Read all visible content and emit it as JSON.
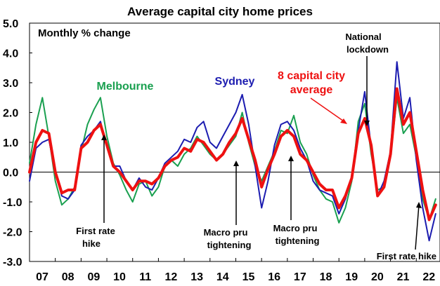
{
  "chart_data": {
    "type": "line",
    "title": "Average capital city home prices",
    "subtitle": "Monthly % change",
    "ylim": [
      -3.0,
      5.0
    ],
    "yticks": [
      "5.0",
      "4.0",
      "3.0",
      "2.0",
      "1.0",
      "0.0",
      "-1.0",
      "-2.0",
      "-3.0"
    ],
    "yticks_values": [
      5,
      4,
      3,
      2,
      1,
      0,
      -1,
      -2,
      -3
    ],
    "xlim": [
      2007.0,
      2022.92
    ],
    "xticks": [
      "07",
      "08",
      "09",
      "10",
      "11",
      "12",
      "13",
      "14",
      "15",
      "16",
      "17",
      "18",
      "19",
      "20",
      "21",
      "22"
    ],
    "xticks_values": [
      2007,
      2008,
      2009,
      2010,
      2011,
      2012,
      2013,
      2014,
      2015,
      2016,
      2017,
      2018,
      2019,
      2020,
      2021,
      2022
    ],
    "grid": false,
    "series": [
      {
        "name": "Melbourne",
        "color": "#1aa050",
        "points": [
          [
            2007.0,
            0.3
          ],
          [
            2007.25,
            1.6
          ],
          [
            2007.5,
            2.5
          ],
          [
            2007.75,
            1.2
          ],
          [
            2008.0,
            -0.3
          ],
          [
            2008.25,
            -1.1
          ],
          [
            2008.5,
            -0.9
          ],
          [
            2008.75,
            -0.5
          ],
          [
            2009.0,
            0.7
          ],
          [
            2009.25,
            1.6
          ],
          [
            2009.5,
            2.1
          ],
          [
            2009.75,
            2.5
          ],
          [
            2010.0,
            1.2
          ],
          [
            2010.25,
            0.3
          ],
          [
            2010.5,
            -0.1
          ],
          [
            2010.75,
            -0.6
          ],
          [
            2011.0,
            -1.0
          ],
          [
            2011.25,
            -0.4
          ],
          [
            2011.5,
            -0.3
          ],
          [
            2011.75,
            -0.8
          ],
          [
            2012.0,
            -0.5
          ],
          [
            2012.25,
            0.2
          ],
          [
            2012.5,
            0.4
          ],
          [
            2012.75,
            0.2
          ],
          [
            2013.0,
            0.6
          ],
          [
            2013.25,
            0.8
          ],
          [
            2013.5,
            1.2
          ],
          [
            2013.75,
            0.9
          ],
          [
            2014.0,
            0.6
          ],
          [
            2014.25,
            0.4
          ],
          [
            2014.5,
            0.6
          ],
          [
            2014.75,
            0.9
          ],
          [
            2015.0,
            1.2
          ],
          [
            2015.25,
            2.0
          ],
          [
            2015.5,
            1.0
          ],
          [
            2015.75,
            0.2
          ],
          [
            2016.0,
            -0.3
          ],
          [
            2016.25,
            0.2
          ],
          [
            2016.5,
            0.7
          ],
          [
            2016.75,
            1.4
          ],
          [
            2017.0,
            1.3
          ],
          [
            2017.25,
            1.9
          ],
          [
            2017.5,
            1.0
          ],
          [
            2017.75,
            0.6
          ],
          [
            2018.0,
            -0.1
          ],
          [
            2018.25,
            -0.6
          ],
          [
            2018.5,
            -0.9
          ],
          [
            2018.75,
            -1.0
          ],
          [
            2019.0,
            -1.7
          ],
          [
            2019.25,
            -1.2
          ],
          [
            2019.5,
            -0.3
          ],
          [
            2019.75,
            1.7
          ],
          [
            2020.0,
            2.3
          ],
          [
            2020.25,
            0.6
          ],
          [
            2020.5,
            -0.6
          ],
          [
            2020.75,
            -0.5
          ],
          [
            2021.0,
            0.5
          ],
          [
            2021.25,
            2.5
          ],
          [
            2021.5,
            1.3
          ],
          [
            2021.75,
            1.6
          ],
          [
            2022.0,
            0.5
          ],
          [
            2022.25,
            -0.9
          ],
          [
            2022.5,
            -1.6
          ],
          [
            2022.75,
            -0.9
          ]
        ]
      },
      {
        "name": "Sydney",
        "color": "#1c1cb0",
        "points": [
          [
            2007.0,
            -0.3
          ],
          [
            2007.25,
            0.8
          ],
          [
            2007.5,
            1.0
          ],
          [
            2007.75,
            1.1
          ],
          [
            2008.0,
            0.0
          ],
          [
            2008.25,
            -0.8
          ],
          [
            2008.5,
            -0.9
          ],
          [
            2008.75,
            -0.6
          ],
          [
            2009.0,
            0.9
          ],
          [
            2009.25,
            1.2
          ],
          [
            2009.5,
            1.4
          ],
          [
            2009.75,
            1.7
          ],
          [
            2010.0,
            0.9
          ],
          [
            2010.25,
            0.2
          ],
          [
            2010.5,
            0.2
          ],
          [
            2010.75,
            -0.3
          ],
          [
            2011.0,
            -0.6
          ],
          [
            2011.25,
            -0.2
          ],
          [
            2011.5,
            -0.5
          ],
          [
            2011.75,
            -0.6
          ],
          [
            2012.0,
            -0.2
          ],
          [
            2012.25,
            0.3
          ],
          [
            2012.5,
            0.5
          ],
          [
            2012.75,
            0.7
          ],
          [
            2013.0,
            1.1
          ],
          [
            2013.25,
            1.0
          ],
          [
            2013.5,
            1.5
          ],
          [
            2013.75,
            1.7
          ],
          [
            2014.0,
            1.0
          ],
          [
            2014.25,
            0.8
          ],
          [
            2014.5,
            1.2
          ],
          [
            2014.75,
            1.6
          ],
          [
            2015.0,
            2.0
          ],
          [
            2015.25,
            2.6
          ],
          [
            2015.5,
            1.6
          ],
          [
            2015.75,
            0.2
          ],
          [
            2016.0,
            -1.2
          ],
          [
            2016.25,
            -0.3
          ],
          [
            2016.5,
            0.9
          ],
          [
            2016.75,
            1.6
          ],
          [
            2017.0,
            1.7
          ],
          [
            2017.25,
            1.4
          ],
          [
            2017.5,
            0.8
          ],
          [
            2017.75,
            0.4
          ],
          [
            2018.0,
            -0.3
          ],
          [
            2018.25,
            -0.6
          ],
          [
            2018.5,
            -0.7
          ],
          [
            2018.75,
            -0.8
          ],
          [
            2019.0,
            -1.4
          ],
          [
            2019.25,
            -0.9
          ],
          [
            2019.5,
            -0.2
          ],
          [
            2019.75,
            1.4
          ],
          [
            2020.0,
            2.7
          ],
          [
            2020.25,
            0.8
          ],
          [
            2020.5,
            -0.8
          ],
          [
            2020.75,
            -0.3
          ],
          [
            2021.0,
            0.7
          ],
          [
            2021.25,
            3.7
          ],
          [
            2021.5,
            1.8
          ],
          [
            2021.75,
            2.5
          ],
          [
            2022.0,
            0.4
          ],
          [
            2022.25,
            -1.2
          ],
          [
            2022.5,
            -2.3
          ],
          [
            2022.75,
            -1.4
          ]
        ]
      },
      {
        "name": "8 capital city average",
        "color": "#ee1111",
        "points": [
          [
            2007.0,
            0.0
          ],
          [
            2007.25,
            1.0
          ],
          [
            2007.5,
            1.4
          ],
          [
            2007.75,
            1.3
          ],
          [
            2008.0,
            0.0
          ],
          [
            2008.25,
            -0.7
          ],
          [
            2008.5,
            -0.6
          ],
          [
            2008.75,
            -0.6
          ],
          [
            2009.0,
            0.8
          ],
          [
            2009.25,
            1.0
          ],
          [
            2009.5,
            1.4
          ],
          [
            2009.75,
            1.6
          ],
          [
            2010.0,
            0.9
          ],
          [
            2010.25,
            0.2
          ],
          [
            2010.5,
            0.0
          ],
          [
            2010.75,
            -0.3
          ],
          [
            2011.0,
            -0.6
          ],
          [
            2011.25,
            -0.3
          ],
          [
            2011.5,
            -0.3
          ],
          [
            2011.75,
            -0.4
          ],
          [
            2012.0,
            -0.2
          ],
          [
            2012.25,
            0.2
          ],
          [
            2012.5,
            0.4
          ],
          [
            2012.75,
            0.5
          ],
          [
            2013.0,
            0.8
          ],
          [
            2013.25,
            0.7
          ],
          [
            2013.5,
            1.1
          ],
          [
            2013.75,
            1.0
          ],
          [
            2014.0,
            0.7
          ],
          [
            2014.25,
            0.4
          ],
          [
            2014.5,
            0.6
          ],
          [
            2014.75,
            1.0
          ],
          [
            2015.0,
            1.3
          ],
          [
            2015.25,
            1.8
          ],
          [
            2015.5,
            1.1
          ],
          [
            2015.75,
            0.4
          ],
          [
            2016.0,
            -0.5
          ],
          [
            2016.25,
            0.1
          ],
          [
            2016.5,
            0.6
          ],
          [
            2016.75,
            1.2
          ],
          [
            2017.0,
            1.4
          ],
          [
            2017.25,
            1.2
          ],
          [
            2017.5,
            0.6
          ],
          [
            2017.75,
            0.4
          ],
          [
            2018.0,
            0.0
          ],
          [
            2018.25,
            -0.4
          ],
          [
            2018.5,
            -0.6
          ],
          [
            2018.75,
            -0.6
          ],
          [
            2019.0,
            -1.2
          ],
          [
            2019.25,
            -0.8
          ],
          [
            2019.5,
            -0.2
          ],
          [
            2019.75,
            1.3
          ],
          [
            2020.0,
            1.8
          ],
          [
            2020.25,
            0.9
          ],
          [
            2020.5,
            -0.8
          ],
          [
            2020.75,
            -0.5
          ],
          [
            2021.0,
            0.6
          ],
          [
            2021.25,
            2.8
          ],
          [
            2021.5,
            1.6
          ],
          [
            2021.75,
            2.0
          ],
          [
            2022.0,
            0.7
          ],
          [
            2022.25,
            -0.6
          ],
          [
            2022.5,
            -1.6
          ],
          [
            2022.75,
            -1.1
          ]
        ]
      }
    ],
    "annotations": [
      {
        "text": "Melbourne",
        "color": "#1aa050"
      },
      {
        "text": "Sydney",
        "color": "#1c1cb0"
      },
      {
        "text": "8 capital city",
        "text2": "average",
        "color": "#ee1111"
      },
      {
        "text": "National",
        "text2": "lockdown",
        "color": "#000000"
      },
      {
        "text": "First rate",
        "text2": "hike",
        "color": "#000000"
      },
      {
        "text": "Macro pru",
        "text2": "tightening",
        "color": "#000000"
      },
      {
        "text": "Macro pru",
        "text2": "tightening",
        "color": "#000000"
      },
      {
        "text": "First rate hike",
        "color": "#000000"
      }
    ]
  }
}
